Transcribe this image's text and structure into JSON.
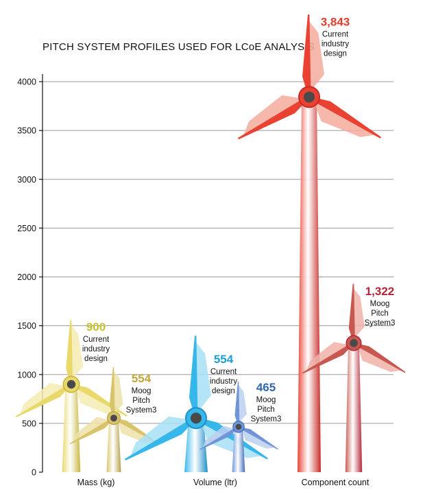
{
  "chart_data": {
    "type": "bar",
    "title": "PITCH SYSTEM PROFILES USED FOR LCoE ANALYSIS",
    "xlabel": "",
    "ylabel": "",
    "ylim": [
      0,
      4000
    ],
    "yticks": [
      0,
      500,
      1000,
      1500,
      2000,
      2500,
      3000,
      3500,
      4000
    ],
    "categories": [
      "Mass (kg)",
      "Volume (ltr)",
      "Component count"
    ],
    "series": [
      {
        "name": "Current industry design",
        "values": [
          900,
          554,
          3843
        ],
        "labels": [
          "900",
          "554",
          "3,843"
        ],
        "label_lines": [
          [
            "Current",
            "industry",
            "design"
          ],
          [
            "Current",
            "industry",
            "design"
          ],
          [
            "Current",
            "industry",
            "design"
          ]
        ]
      },
      {
        "name": "Moog Pitch System3",
        "values": [
          554,
          465,
          1322
        ],
        "labels": [
          "554",
          "465",
          "1,322"
        ],
        "label_lines": [
          [
            "Moog",
            "Pitch",
            "System3"
          ],
          [
            "Moog",
            "Pitch",
            "System3"
          ],
          [
            "Moog",
            "Pitch",
            "System3"
          ]
        ]
      }
    ],
    "group_colors": [
      {
        "main": "#e9d96a",
        "light": "#f4ebb0",
        "dark": "#c9b43d",
        "text": "#c6c12d"
      },
      {
        "main": "#35b7ea",
        "light": "#a6e1f6",
        "dark": "#1e8fc8",
        "text": "#1a9fd8"
      },
      {
        "main": "#ea4232",
        "light": "#f6ab9e",
        "dark": "#c62a26",
        "text": "#e33b2b"
      }
    ],
    "moog_colors": [
      {
        "main": "#d8c36a",
        "light": "#ece0a8",
        "dark": "#b7a048",
        "text": "#c3a53e"
      },
      {
        "main": "#6f95d6",
        "light": "#bcd0f0",
        "dark": "#3c69b8",
        "text": "#2e64b0"
      },
      {
        "main": "#c8584f",
        "light": "#efb1a8",
        "dark": "#b32637",
        "text": "#b52136"
      }
    ],
    "hub_color": "#4a4a4a"
  }
}
